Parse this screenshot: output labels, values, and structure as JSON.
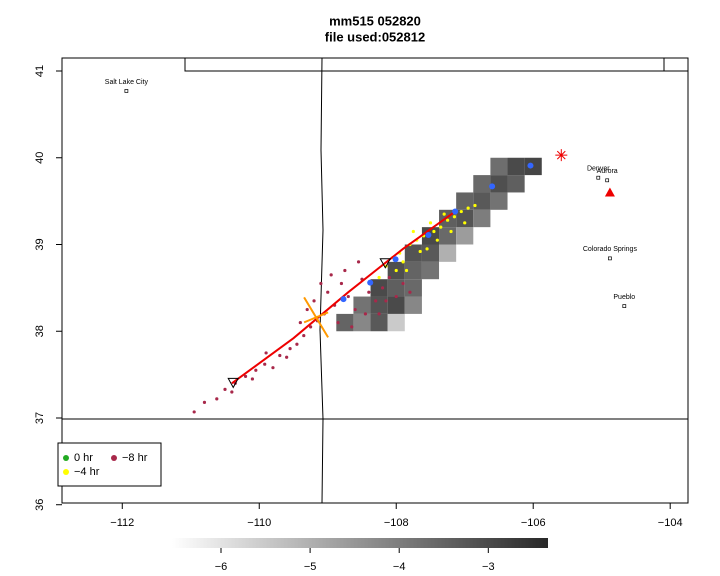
{
  "chart_data": {
    "type": "scatter",
    "title": "mm515 052820",
    "subtitle": "file used:052812",
    "xlim": [
      -112.88,
      -103.74
    ],
    "ylim": [
      36.02,
      41.15
    ],
    "xticks": [
      {
        "value": -112,
        "label": "−112"
      },
      {
        "value": -110,
        "label": "−110"
      },
      {
        "value": -108,
        "label": "−108"
      },
      {
        "value": -106,
        "label": "−106"
      },
      {
        "value": -104,
        "label": "−104"
      }
    ],
    "yticks": [
      36,
      37,
      38,
      39,
      40,
      41
    ],
    "series": [
      {
        "name": "0 hr",
        "color": "#22aa22",
        "x": [],
        "y": []
      },
      {
        "name": "−8 hr",
        "color": "#a8284a",
        "x": [
          -110.95,
          -110.8,
          -110.62,
          -110.5,
          -110.35,
          -110.2,
          -110.05,
          -109.92,
          -109.8,
          -109.7,
          -109.55,
          -109.45,
          -109.35,
          -109.25,
          -109.15,
          -109.05,
          -109.2,
          -109.0,
          -108.9,
          -108.8,
          -108.7,
          -108.6,
          -108.5,
          -108.4,
          -108.3,
          -108.2,
          -108.1,
          -108.0,
          -107.9,
          -107.8,
          -108.95,
          -108.75,
          -108.55,
          -109.1,
          -108.85,
          -108.65,
          -108.45,
          -108.25,
          -110.4,
          -110.1,
          -109.6,
          -109.4,
          -109.3,
          -108.15,
          -109.9
        ],
        "y": [
          37.07,
          37.18,
          37.22,
          37.33,
          37.4,
          37.48,
          37.55,
          37.62,
          37.58,
          37.72,
          37.8,
          37.85,
          37.95,
          38.05,
          38.12,
          38.2,
          38.35,
          38.45,
          38.3,
          38.55,
          38.4,
          38.25,
          38.6,
          38.45,
          38.35,
          38.5,
          38.62,
          38.4,
          38.55,
          38.45,
          38.65,
          38.7,
          38.8,
          38.55,
          38.1,
          38.05,
          38.2,
          38.2,
          37.3,
          37.45,
          37.7,
          38.1,
          38.25,
          38.35,
          37.75
        ]
      },
      {
        "name": "−4 hr",
        "color": "#ffff00",
        "x": [
          -108.25,
          -108.15,
          -108.05,
          -107.95,
          -107.9,
          -107.8,
          -107.7,
          -107.6,
          -107.55,
          -107.45,
          -107.35,
          -107.25,
          -107.15,
          -107.05,
          -106.95,
          -106.85,
          -107.4,
          -107.65,
          -107.85,
          -107.2,
          -107.0,
          -107.3,
          -107.75,
          -108.0,
          -107.5
        ],
        "y": [
          38.62,
          38.75,
          38.85,
          38.9,
          38.8,
          39.0,
          39.05,
          39.1,
          38.95,
          39.15,
          39.2,
          39.28,
          39.32,
          39.38,
          39.42,
          39.45,
          39.05,
          38.92,
          38.7,
          39.15,
          39.25,
          39.35,
          39.15,
          38.7,
          39.25
        ]
      }
    ],
    "cells": {
      "x": [
        -108.75,
        -108.5,
        -108.25,
        -108.0,
        -108.5,
        -108.25,
        -108.0,
        -107.75,
        -108.25,
        -108.0,
        -107.75,
        -108.0,
        -107.75,
        -107.5,
        -107.75,
        -107.5,
        -107.25,
        -107.5,
        -107.25,
        -107.0,
        -107.25,
        -107.0,
        -106.75,
        -107.0,
        -106.75,
        -106.5,
        -106.75,
        -106.5,
        -106.25,
        -106.5,
        -106.25,
        -106.0
      ],
      "y": [
        38.1,
        38.1,
        38.1,
        38.1,
        38.3,
        38.3,
        38.3,
        38.3,
        38.5,
        38.5,
        38.5,
        38.7,
        38.7,
        38.7,
        38.9,
        38.9,
        38.9,
        39.1,
        39.1,
        39.1,
        39.3,
        39.3,
        39.3,
        39.5,
        39.5,
        39.5,
        39.7,
        39.7,
        39.7,
        39.9,
        39.9,
        39.9
      ],
      "values": [
        -3.5,
        -4.2,
        -3.3,
        -5.5,
        -3.8,
        -3.2,
        -3.0,
        -4.2,
        -3.0,
        -3.4,
        -3.6,
        -3.1,
        -3.5,
        -3.8,
        -3.2,
        -3.3,
        -5.0,
        -3.0,
        -3.6,
        -4.6,
        -3.4,
        -3.2,
        -4.0,
        -3.5,
        -3.3,
        -3.8,
        -3.6,
        -3.1,
        -3.4,
        -3.7,
        -3.0,
        -2.9
      ]
    },
    "colorbar": {
      "lim": [
        -6.55,
        -2.33
      ],
      "ticks": [
        {
          "value": -6,
          "label": "−6"
        },
        {
          "value": -5,
          "label": "−5"
        },
        {
          "value": -4,
          "label": "−4"
        },
        {
          "value": -3,
          "label": "−3"
        }
      ]
    },
    "centers": {
      "color": "#3366ff",
      "x": [
        -108.77,
        -108.38,
        -108.01,
        -107.53,
        -107.14,
        -106.6,
        -106.04
      ],
      "y": [
        38.37,
        38.56,
        38.83,
        39.11,
        39.38,
        39.67,
        39.91
      ]
    },
    "fit_line": {
      "color": "#ee0000",
      "x": [
        -110.4,
        -109.5,
        -108.7,
        -107.9,
        -107.14
      ],
      "y": [
        37.4,
        37.92,
        38.45,
        38.95,
        39.38
      ]
    },
    "cross": {
      "color": "#ff9900",
      "x": -109.17,
      "y": 38.16
    },
    "triangles": {
      "x": [
        -108.16,
        -110.38
      ],
      "y": [
        38.79,
        37.41
      ]
    },
    "asterisk": {
      "color": "#ee0000",
      "x": -105.59,
      "y": 40.03
    },
    "red_triangle": {
      "color": "#ee0000",
      "x": -104.88,
      "y": 39.6
    },
    "cities": {
      "names": [
        "Salt Lake City",
        "Denver",
        "Aurora",
        "Colorado Springs",
        "Pueblo"
      ],
      "x": [
        -111.94,
        -105.05,
        -104.92,
        -104.88,
        -104.67
      ],
      "y": [
        40.77,
        39.77,
        39.74,
        38.84,
        38.29
      ]
    }
  }
}
